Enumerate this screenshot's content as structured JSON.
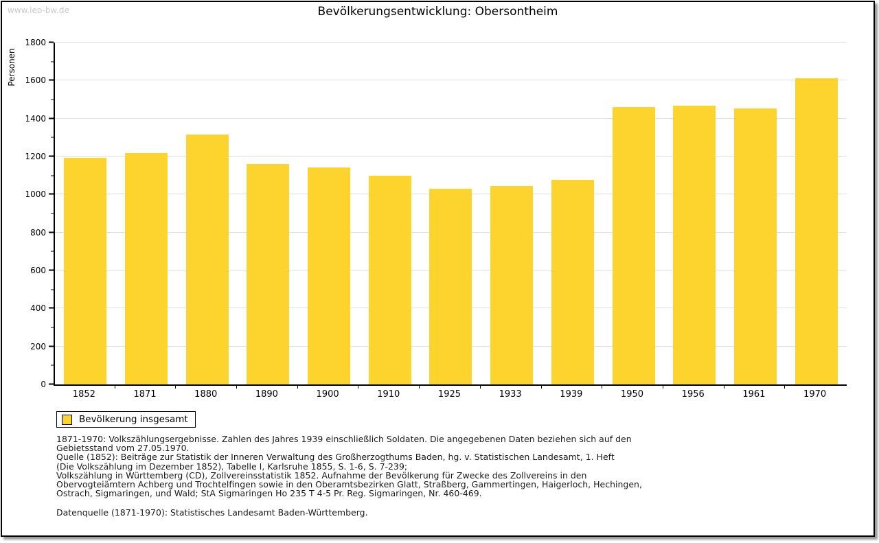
{
  "watermark": "www.leo-bw.de",
  "title": "Bevölkerungsentwicklung: Obersontheim",
  "chart_data": {
    "type": "bar",
    "title": "Bevölkerungsentwicklung: Obersontheim",
    "ylabel": "Personen",
    "xlabel": "",
    "categories": [
      "1852",
      "1871",
      "1880",
      "1890",
      "1900",
      "1910",
      "1925",
      "1933",
      "1939",
      "1950",
      "1956",
      "1961",
      "1970"
    ],
    "values": [
      1193,
      1218,
      1315,
      1160,
      1142,
      1100,
      1030,
      1045,
      1078,
      1462,
      1466,
      1453,
      1612
    ],
    "ylim": [
      0,
      1800
    ],
    "ytick_step": 200,
    "ytick_minor_step": 100,
    "grid": true,
    "bar_color": "#FDD32D",
    "gridline_color": "#dddddd",
    "legend_entries": [
      "Bevölkerung insgesamt"
    ],
    "legend_position": "bottom-left"
  },
  "legend": {
    "label": "Bevölkerung insgesamt",
    "swatch_color": "#FDD32D"
  },
  "footnotes": [
    "1871-1970: Volkszählungsergebnisse. Zahlen des Jahres 1939 einschließlich Soldaten. Die angegebenen Daten beziehen sich auf den",
    "Gebietsstand vom 27.05.1970.",
    "Quelle (1852): Beiträge zur Statistik der Inneren Verwaltung des Großherzogthums Baden, hg. v. Statistischen Landesamt, 1. Heft",
    "(Die Volkszählung im Dezember 1852), Tabelle I, Karlsruhe 1855, S. 1-6, S. 7-239;",
    "Volkszählung in Württemberg (CD), Zollvereinsstatistik 1852. Aufnahme der Bevölkerung für Zwecke des Zollvereins in den",
    "Obervogteiämtern Achberg und Trochtelfingen sowie in den Oberamtsbezirken Glatt, Straßberg, Gammertingen, Haigerloch, Hechingen,",
    "Ostrach, Sigmaringen, und Wald; StA Sigmaringen Ho 235 T 4-5 Pr. Reg. Sigmaringen, Nr. 460-469."
  ],
  "datasource": "Datenquelle (1871-1970): Statistisches Landesamt Baden-Württemberg."
}
